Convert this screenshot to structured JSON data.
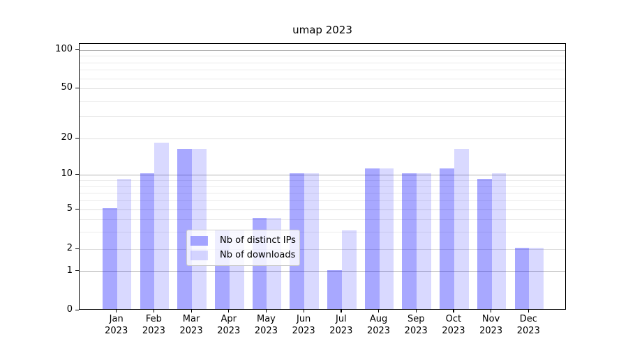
{
  "chart_data": {
    "type": "bar",
    "title": "umap 2023",
    "categories": [
      "Jan 2023",
      "Feb 2023",
      "Mar 2023",
      "Apr 2023",
      "May 2023",
      "Jun 2023",
      "Jul 2023",
      "Aug 2023",
      "Sep 2023",
      "Oct 2023",
      "Nov 2023",
      "Dec 2023"
    ],
    "series": [
      {
        "name": "Nb of distinct IPs",
        "color": "rgba(0,0,255,0.34)",
        "color_hex": "#a9a9f6",
        "values": [
          5,
          10,
          16,
          3,
          4,
          10,
          1,
          11,
          10,
          11,
          9,
          2
        ]
      },
      {
        "name": "Nb of downloads",
        "color": "rgba(0,0,255,0.15)",
        "color_hex": "#dcdcfa",
        "values": [
          9,
          18,
          16,
          3,
          4,
          10,
          3,
          11,
          10,
          16,
          10,
          2
        ]
      }
    ],
    "xlabel": "",
    "ylabel": "",
    "y_scale": "symlog",
    "y_ticks": [
      0,
      1,
      2,
      5,
      10,
      20,
      50,
      100
    ],
    "ylim": [
      0,
      115
    ],
    "grid": true,
    "legend": {
      "position": "lower center",
      "entries": [
        "Nb of distinct IPs",
        "Nb of downloads"
      ]
    }
  }
}
